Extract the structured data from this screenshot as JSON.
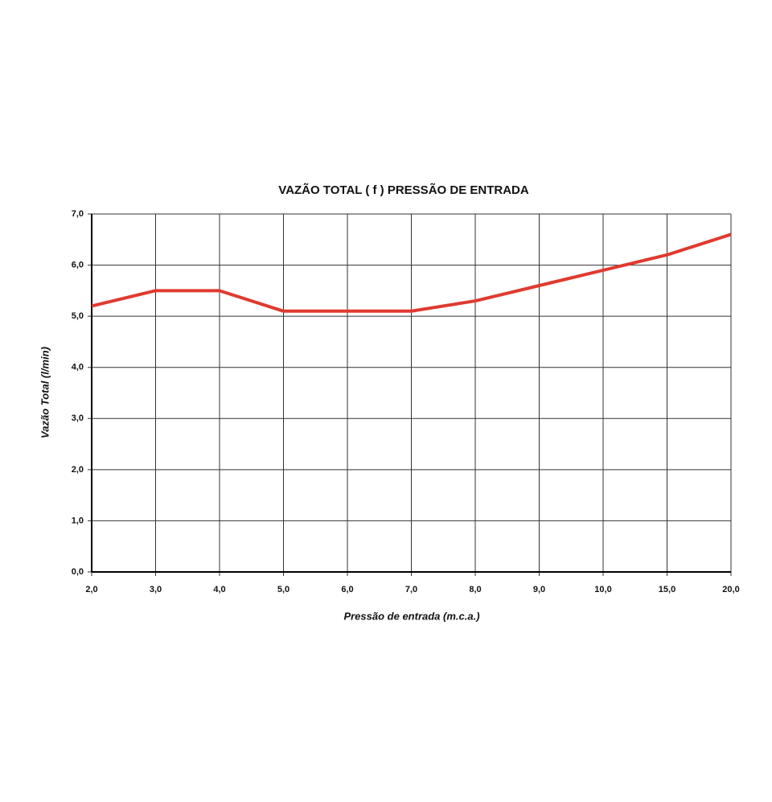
{
  "chart_data": {
    "type": "line",
    "title": "VAZÃO TOTAL ( f ) PRESSÃO DE ENTRADA",
    "x_label": "Pressão de entrada (m.c.a.)",
    "y_label": "Vazão Total (l/min)",
    "categories": [
      "2,0",
      "3,0",
      "4,0",
      "5,0",
      "6,0",
      "7,0",
      "8,0",
      "9,0",
      "10,0",
      "15,0",
      "20,0"
    ],
    "series": [
      {
        "color": "#e03a2f",
        "values": [
          5.2,
          5.5,
          5.5,
          5.1,
          5.1,
          5.1,
          5.3,
          5.6,
          5.9,
          6.2,
          6.6
        ]
      }
    ],
    "ylim": [
      0,
      7
    ],
    "yticks": [
      {
        "value": 0,
        "label": "0,0"
      },
      {
        "value": 1,
        "label": "1,0"
      },
      {
        "value": 2,
        "label": "2,0"
      },
      {
        "value": 3,
        "label": "3,0"
      },
      {
        "value": 4,
        "label": "4,0"
      },
      {
        "value": 5,
        "label": "5,0"
      },
      {
        "value": 6,
        "label": "6,0"
      },
      {
        "value": 7,
        "label": "7,0"
      }
    ],
    "grid": true
  }
}
